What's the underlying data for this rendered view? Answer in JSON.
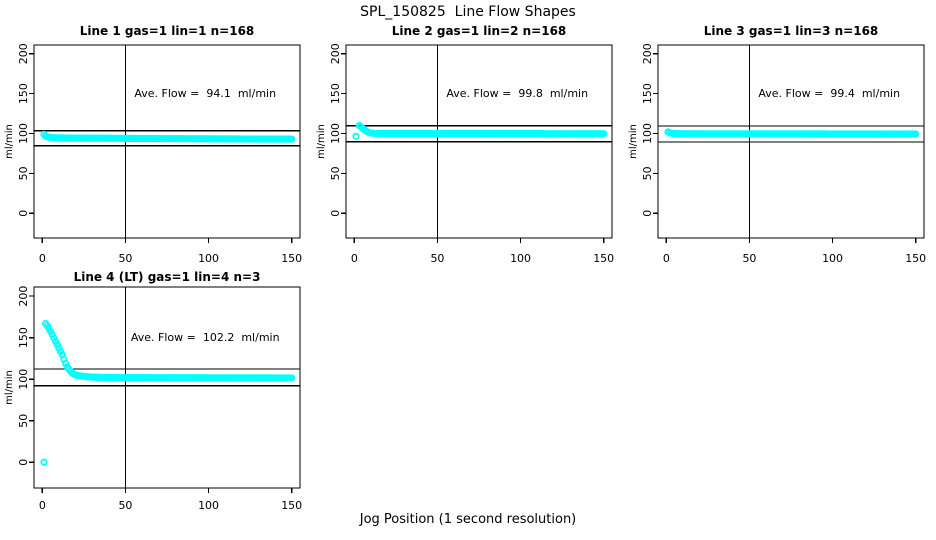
{
  "figure": {
    "title": "SPL_150825  Line Flow Shapes",
    "xlabel": "Jog Position (1 second resolution)",
    "point_color": "#00ffff",
    "line_color": "#000000"
  },
  "chart_data": [
    {
      "type": "scatter",
      "title": "Line 1 gas=1 lin=1 n=168",
      "ylabel": "ml/min",
      "ave_flow": 94.1,
      "ave_flow_label": "Ave. Flow =  94.1  ml/min",
      "xlim": [
        -5,
        155
      ],
      "ylim": [
        -31,
        211
      ],
      "xticks": [
        0,
        50,
        100,
        150
      ],
      "yticks": [
        0,
        50,
        100,
        150,
        200
      ],
      "vline_x": 50,
      "ref_upper": 103.5,
      "ref_lower": 84.7,
      "series_keypoints": [
        [
          1,
          99
        ],
        [
          2,
          97
        ],
        [
          3,
          95.8
        ],
        [
          5,
          95
        ],
        [
          8,
          94.6
        ],
        [
          20,
          94.3
        ],
        [
          60,
          93.8
        ],
        [
          110,
          93.3
        ],
        [
          150,
          93
        ]
      ],
      "outliers": []
    },
    {
      "type": "scatter",
      "title": "Line 2 gas=1 lin=2 n=168",
      "ylabel": "ml/min",
      "ave_flow": 99.8,
      "ave_flow_label": "Ave. Flow =  99.8  ml/min",
      "xlim": [
        -5,
        155
      ],
      "ylim": [
        -31,
        211
      ],
      "xticks": [
        0,
        50,
        100,
        150
      ],
      "yticks": [
        0,
        50,
        100,
        150,
        200
      ],
      "vline_x": 50,
      "ref_upper": 109.8,
      "ref_lower": 89.8,
      "series_keypoints": [
        [
          3,
          110
        ],
        [
          4,
          108.5
        ],
        [
          5,
          106.5
        ],
        [
          6,
          104.8
        ],
        [
          7,
          103.2
        ],
        [
          8,
          102
        ],
        [
          9,
          101.2
        ],
        [
          10,
          100.6
        ],
        [
          13,
          100.1
        ],
        [
          20,
          99.9
        ],
        [
          150,
          99.8
        ]
      ],
      "outliers": [
        [
          1,
          96.5
        ]
      ]
    },
    {
      "type": "scatter",
      "title": "Line 3 gas=1 lin=3 n=168",
      "ylabel": "ml/min",
      "ave_flow": 99.4,
      "ave_flow_label": "Ave. Flow =  99.4  ml/min",
      "xlim": [
        -5,
        155
      ],
      "ylim": [
        -31,
        211
      ],
      "xticks": [
        0,
        50,
        100,
        150
      ],
      "yticks": [
        0,
        50,
        100,
        150,
        200
      ],
      "vline_x": 50,
      "ref_upper": 109.3,
      "ref_lower": 89.5,
      "series_keypoints": [
        [
          1,
          102
        ],
        [
          2,
          100.8
        ],
        [
          4,
          100
        ],
        [
          8,
          99.7
        ],
        [
          150,
          99.4
        ]
      ],
      "outliers": []
    },
    {
      "type": "scatter",
      "title": "Line 4 (LT) gas=1 lin=4 n=3",
      "ylabel": "ml/min",
      "ave_flow": 102.2,
      "ave_flow_label": "Ave. Flow =  102.2  ml/min",
      "xlim": [
        -5,
        155
      ],
      "ylim": [
        -31,
        211
      ],
      "xticks": [
        0,
        50,
        100,
        150
      ],
      "yticks": [
        0,
        50,
        100,
        150,
        200
      ],
      "vline_x": 50,
      "ref_upper": 112.4,
      "ref_lower": 92.0,
      "series_keypoints": [
        [
          2,
          167
        ],
        [
          3,
          164.5
        ],
        [
          4,
          161
        ],
        [
          5,
          157.5
        ],
        [
          6,
          153.5
        ],
        [
          7,
          149.5
        ],
        [
          8,
          145.5
        ],
        [
          9,
          141.5
        ],
        [
          10,
          137.5
        ],
        [
          11,
          133.5
        ],
        [
          12,
          129.5
        ],
        [
          13,
          124
        ],
        [
          14,
          119
        ],
        [
          15,
          115
        ],
        [
          16,
          112
        ],
        [
          17,
          109.5
        ],
        [
          18,
          107.5
        ],
        [
          19,
          106
        ],
        [
          20,
          105
        ],
        [
          22,
          104.2
        ],
        [
          25,
          103.2
        ],
        [
          30,
          102.5
        ],
        [
          40,
          102
        ],
        [
          70,
          101.8
        ],
        [
          150,
          101.5
        ]
      ],
      "outliers": [
        [
          1,
          0
        ]
      ]
    }
  ]
}
